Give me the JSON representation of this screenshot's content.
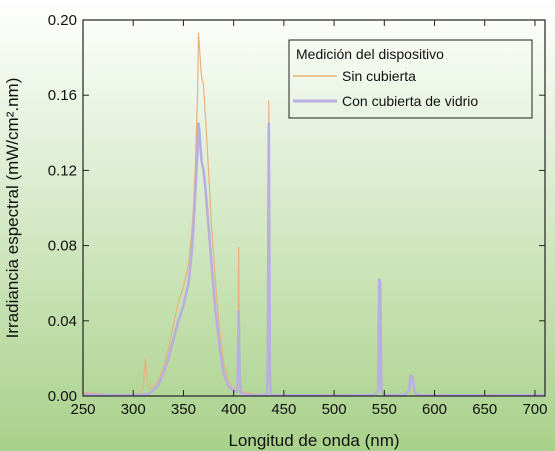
{
  "chart_data": {
    "type": "line",
    "xlabel": "Longitud de onda (nm)",
    "ylabel": "Irradiancia espectral (mW/cm².nm)",
    "xlim": [
      250,
      710
    ],
    "ylim": [
      0,
      0.2
    ],
    "x_ticks": [
      "250",
      "300",
      "350",
      "400",
      "450",
      "500",
      "550",
      "600",
      "650",
      "700"
    ],
    "y_ticks": [
      "0.00",
      "0.04",
      "0.08",
      "0.12",
      "0.16",
      "0.20"
    ],
    "legend": {
      "title": "Medición del dispositivo",
      "placement": "top-right"
    },
    "background_gradient": [
      "#ffffff",
      "#a8d18a"
    ],
    "series": [
      {
        "name": "Sin cubierta",
        "color": "#e8b27a",
        "points": [
          [
            250,
            0.002
          ],
          [
            270,
            0.001
          ],
          [
            290,
            0.0005
          ],
          [
            305,
            0.001
          ],
          [
            310,
            0.004
          ],
          [
            312,
            0.02
          ],
          [
            314,
            0.006
          ],
          [
            318,
            0.004
          ],
          [
            325,
            0.008
          ],
          [
            330,
            0.015
          ],
          [
            335,
            0.025
          ],
          [
            340,
            0.038
          ],
          [
            345,
            0.05
          ],
          [
            350,
            0.058
          ],
          [
            355,
            0.07
          ],
          [
            358,
            0.085
          ],
          [
            360,
            0.1
          ],
          [
            362,
            0.125
          ],
          [
            364,
            0.16
          ],
          [
            365,
            0.193
          ],
          [
            366,
            0.185
          ],
          [
            368,
            0.17
          ],
          [
            370,
            0.165
          ],
          [
            372,
            0.148
          ],
          [
            375,
            0.12
          ],
          [
            378,
            0.09
          ],
          [
            382,
            0.06
          ],
          [
            386,
            0.035
          ],
          [
            390,
            0.018
          ],
          [
            395,
            0.008
          ],
          [
            400,
            0.004
          ],
          [
            403,
            0.003
          ],
          [
            404,
            0.015
          ],
          [
            405,
            0.079
          ],
          [
            406,
            0.015
          ],
          [
            407,
            0.003
          ],
          [
            410,
            0.002
          ],
          [
            420,
            0.001
          ],
          [
            433,
            0.001
          ],
          [
            434,
            0.02
          ],
          [
            435,
            0.157
          ],
          [
            436,
            0.02
          ],
          [
            437,
            0.001
          ],
          [
            450,
            0.0005
          ],
          [
            500,
            0.0003
          ],
          [
            540,
            0.0005
          ],
          [
            544,
            0.003
          ],
          [
            545,
            0.061
          ],
          [
            546,
            0.06
          ],
          [
            547,
            0.003
          ],
          [
            550,
            0.0005
          ],
          [
            570,
            0.0005
          ],
          [
            575,
            0.003
          ],
          [
            576,
            0.011
          ],
          [
            578,
            0.011
          ],
          [
            580,
            0.003
          ],
          [
            582,
            0.0005
          ],
          [
            600,
            0.0003
          ],
          [
            650,
            0.0003
          ],
          [
            700,
            0.0005
          ],
          [
            710,
            0.0005
          ]
        ]
      },
      {
        "name": "Con cubierta de vidrio",
        "color": "#b8aee0",
        "points": [
          [
            250,
            0.001
          ],
          [
            270,
            0.0005
          ],
          [
            300,
            0.0005
          ],
          [
            315,
            0.001
          ],
          [
            320,
            0.003
          ],
          [
            325,
            0.006
          ],
          [
            330,
            0.012
          ],
          [
            335,
            0.02
          ],
          [
            340,
            0.03
          ],
          [
            345,
            0.04
          ],
          [
            350,
            0.048
          ],
          [
            355,
            0.06
          ],
          [
            358,
            0.075
          ],
          [
            360,
            0.09
          ],
          [
            362,
            0.11
          ],
          [
            364,
            0.13
          ],
          [
            365,
            0.145
          ],
          [
            366,
            0.14
          ],
          [
            368,
            0.125
          ],
          [
            370,
            0.12
          ],
          [
            372,
            0.11
          ],
          [
            375,
            0.09
          ],
          [
            378,
            0.07
          ],
          [
            382,
            0.045
          ],
          [
            386,
            0.026
          ],
          [
            390,
            0.012
          ],
          [
            395,
            0.005
          ],
          [
            400,
            0.003
          ],
          [
            403,
            0.002
          ],
          [
            404,
            0.008
          ],
          [
            405,
            0.045
          ],
          [
            406,
            0.008
          ],
          [
            407,
            0.002
          ],
          [
            410,
            0.001
          ],
          [
            420,
            0.0005
          ],
          [
            433,
            0.0005
          ],
          [
            434,
            0.015
          ],
          [
            435,
            0.145
          ],
          [
            436,
            0.015
          ],
          [
            437,
            0.0005
          ],
          [
            450,
            0.0003
          ],
          [
            500,
            0.0003
          ],
          [
            540,
            0.0005
          ],
          [
            544,
            0.003
          ],
          [
            545,
            0.062
          ],
          [
            546,
            0.06
          ],
          [
            547,
            0.003
          ],
          [
            550,
            0.0005
          ],
          [
            570,
            0.0005
          ],
          [
            575,
            0.003
          ],
          [
            576,
            0.011
          ],
          [
            578,
            0.01
          ],
          [
            580,
            0.003
          ],
          [
            582,
            0.0005
          ],
          [
            600,
            0.0003
          ],
          [
            650,
            0.0003
          ],
          [
            700,
            0.0005
          ],
          [
            710,
            0.0005
          ]
        ]
      }
    ]
  }
}
